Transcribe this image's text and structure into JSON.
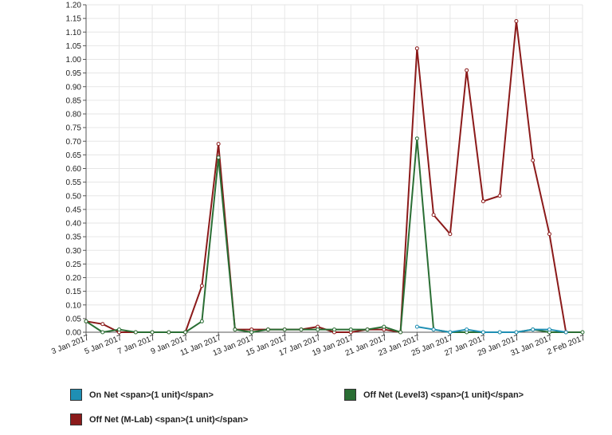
{
  "chart_data": {
    "type": "line",
    "x": [
      "3 Jan 2017",
      "4 Jan 2017",
      "5 Jan 2017",
      "6 Jan 2017",
      "7 Jan 2017",
      "8 Jan 2017",
      "9 Jan 2017",
      "10 Jan 2017",
      "11 Jan 2017",
      "12 Jan 2017",
      "13 Jan 2017",
      "14 Jan 2017",
      "15 Jan 2017",
      "16 Jan 2017",
      "17 Jan 2017",
      "18 Jan 2017",
      "19 Jan 2017",
      "20 Jan 2017",
      "21 Jan 2017",
      "22 Jan 2017",
      "23 Jan 2017",
      "24 Jan 2017",
      "25 Jan 2017",
      "26 Jan 2017",
      "27 Jan 2017",
      "28 Jan 2017",
      "29 Jan 2017",
      "30 Jan 2017",
      "31 Jan 2017",
      "1 Feb 2017",
      "2 Feb 2017"
    ],
    "xtick_labels": [
      "3 Jan 2017",
      "5 Jan 2017",
      "7 Jan 2017",
      "9 Jan 2017",
      "11 Jan 2017",
      "13 Jan 2017",
      "15 Jan 2017",
      "17 Jan 2017",
      "19 Jan 2017",
      "21 Jan 2017",
      "23 Jan 2017",
      "25 Jan 2017",
      "27 Jan 2017",
      "29 Jan 2017",
      "31 Jan 2017",
      "2 Feb 2017"
    ],
    "yticks": [
      "0.00",
      "0.05",
      "0.10",
      "0.15",
      "0.20",
      "0.25",
      "0.30",
      "0.35",
      "0.40",
      "0.45",
      "0.50",
      "0.55",
      "0.60",
      "0.65",
      "0.70",
      "0.75",
      "0.80",
      "0.85",
      "0.90",
      "0.95",
      "1.00",
      "1.05",
      "1.10",
      "1.15",
      "1.20"
    ],
    "ylim": [
      0,
      1.2
    ],
    "grid": true,
    "legend_position": "bottom",
    "series": [
      {
        "name": "On Net <span>(1 unit)</span>",
        "color": "#1f8fb4",
        "values": [
          null,
          null,
          null,
          null,
          null,
          null,
          null,
          null,
          null,
          null,
          null,
          null,
          null,
          null,
          null,
          null,
          null,
          null,
          null,
          null,
          0.02,
          0.01,
          0.0,
          0.01,
          0.0,
          0.0,
          0.0,
          0.01,
          0.01,
          0.0,
          null
        ]
      },
      {
        "name": "Off Net (Level3) <span>(1 unit)</span>",
        "color": "#2a6e34",
        "values": [
          0.04,
          0.0,
          0.01,
          0.0,
          0.0,
          0.0,
          0.0,
          0.04,
          0.64,
          0.01,
          0.0,
          0.01,
          0.01,
          0.01,
          0.01,
          0.01,
          0.01,
          0.01,
          0.02,
          0.0,
          0.71,
          0.01,
          0.0,
          0.0,
          0.0,
          0.0,
          0.0,
          0.01,
          0.0,
          0.0,
          0.0
        ]
      },
      {
        "name": "Off Net (M-Lab) <span>(1 unit)</span>",
        "color": "#8b1a1a",
        "values": [
          0.04,
          0.03,
          0.0,
          0.0,
          0.0,
          0.0,
          0.0,
          0.17,
          0.69,
          0.01,
          0.01,
          0.01,
          0.01,
          0.01,
          0.02,
          0.0,
          0.0,
          0.01,
          0.01,
          0.0,
          1.04,
          0.43,
          0.36,
          0.96,
          0.48,
          0.5,
          1.14,
          0.63,
          0.36,
          0.0,
          null
        ]
      }
    ]
  }
}
